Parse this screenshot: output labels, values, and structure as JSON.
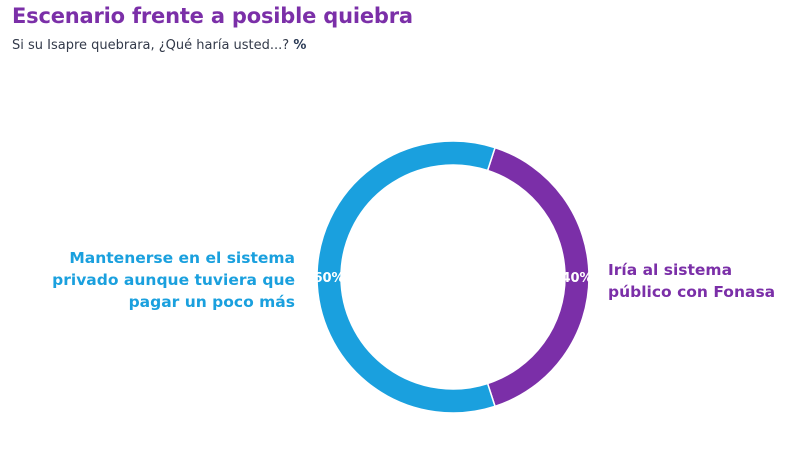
{
  "header": {
    "title": "Escenario frente a posible quiebra",
    "subtitle": "Si su Isapre quebrara, ¿Qué haría usted...?",
    "unit": "%"
  },
  "chart_data": {
    "type": "pie",
    "variant": "donut",
    "title": "Escenario frente a posible quiebra",
    "subtitle": "Si su Isapre quebrara, ¿Qué haría usted...?",
    "unit": "%",
    "slices": [
      {
        "label": "Mantenerse en el sistema privado aunque tuviera que pagar un poco más",
        "value": 60,
        "display": "60%",
        "color": "#1aa0de"
      },
      {
        "label": "Iría al sistema público con Fonasa",
        "value": 40,
        "display": "40%",
        "color": "#7b2fa8"
      }
    ],
    "legend": "labels beside slices"
  }
}
